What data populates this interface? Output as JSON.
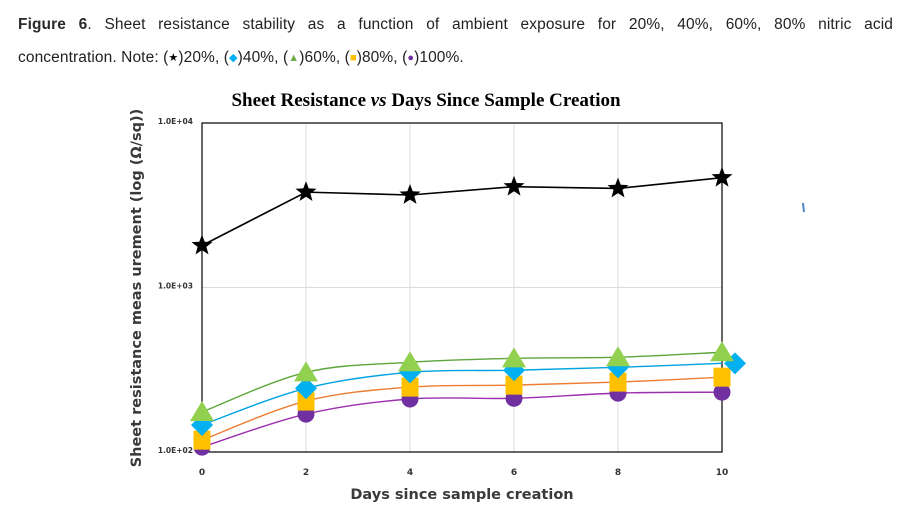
{
  "caption": {
    "figure_label": "Figure 6",
    "text_line1": ". Sheet resistance stability as a function of ambient exposure for 20%, 40%, 60%, 80% nitric acid",
    "text_line2_prefix": "concentration. Note: (",
    "legend_notes": [
      {
        "symbol": "★",
        "color": "#000000",
        "label": ")20%, ("
      },
      {
        "symbol": "◆",
        "color": "#00B0F0",
        "label": ")40%, ("
      },
      {
        "symbol": "▲",
        "color": "#70AD47",
        "label": ")60%, ("
      },
      {
        "symbol": "■",
        "color": "#FFC000",
        "label": ")80%, ("
      },
      {
        "symbol": "●",
        "color": "#7030A0",
        "label": ")100%."
      }
    ]
  },
  "chart_data": {
    "type": "line",
    "title_parts": [
      "Sheet Resistance ",
      "vs",
      " Days Since Sample Creation"
    ],
    "title": "Sheet Resistance vs Days Since Sample Creation",
    "xlabel": "Days since sample creation",
    "ylabel": "Sheet resistance meas urement (log (Ω/sq))",
    "yscale": "log",
    "ylim": [
      100,
      10000
    ],
    "xlim": [
      0,
      10
    ],
    "x_ticks": [
      "0",
      "2",
      "4",
      "6",
      "8",
      "10"
    ],
    "y_ticks": [
      "1.0E+02",
      "1.0E+03",
      "1.0E+04"
    ],
    "grid": "vertical and horizontal major gridlines",
    "x": [
      0,
      2,
      4,
      6,
      8,
      10
    ],
    "series": [
      {
        "name": "20%",
        "marker": "star",
        "color": "#000000",
        "line_color": "#000000",
        "line": "straight",
        "values": [
          1800,
          3800,
          3650,
          4100,
          4000,
          4650
        ]
      },
      {
        "name": "40%",
        "marker": "diamond",
        "color": "#00B0F0",
        "line_color": "#00A3E0",
        "line": "smooth",
        "values": [
          146,
          244,
          305,
          314,
          327,
          346
        ]
      },
      {
        "name": "60%",
        "marker": "triangle",
        "color": "#92D050",
        "line_color": "#5DA63A",
        "line": "smooth",
        "values": [
          175,
          305,
          351,
          371,
          377,
          404
        ]
      },
      {
        "name": "80%",
        "marker": "square",
        "color": "#FFC000",
        "line_color": "#ED7D31",
        "line": "smooth",
        "values": [
          118,
          204,
          248,
          255,
          266,
          285
        ]
      },
      {
        "name": "100%",
        "marker": "circle",
        "color": "#7030A0",
        "line_color": "#9B2FAE",
        "line": "smooth",
        "values": [
          107,
          170,
          210,
          212,
          228,
          231
        ]
      }
    ]
  }
}
